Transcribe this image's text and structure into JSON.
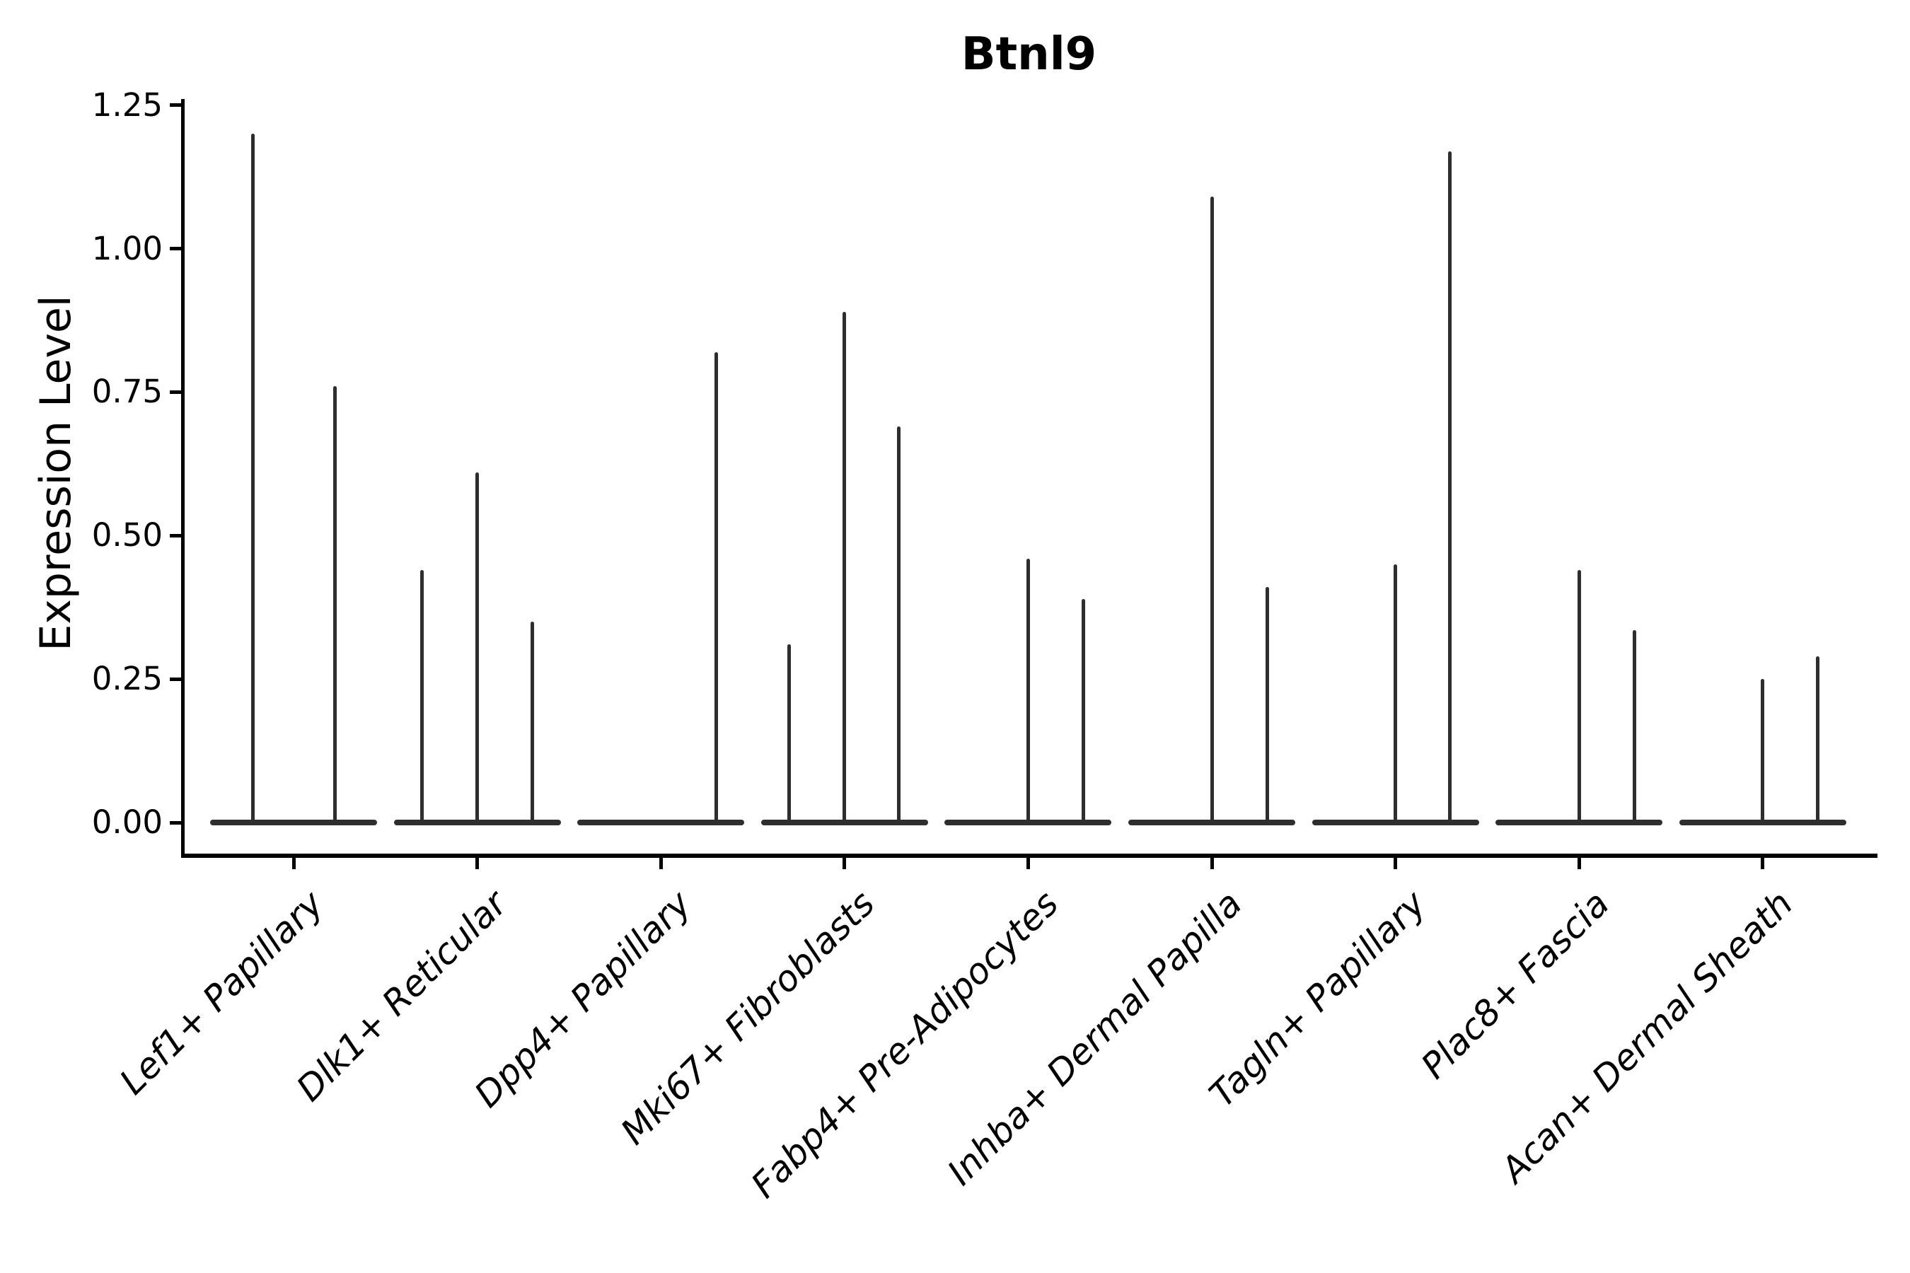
{
  "title": "Btnl9",
  "axes": {
    "ylabel": "Expression Level",
    "ytick_labels": [
      "0.00",
      "0.25",
      "0.50",
      "0.75",
      "1.00",
      "1.25"
    ]
  },
  "colors": {
    "violin_stroke": "#2e2e2e",
    "axis_ink": "#000000",
    "background": "#ffffff"
  },
  "chart_data": {
    "type": "violin",
    "title": "Btnl9",
    "xlabel": "",
    "ylabel": "Expression Level",
    "ylim": [
      -0.06,
      1.26
    ],
    "yticks": [
      0,
      0.25,
      0.5,
      0.75,
      1.0,
      1.25
    ],
    "grid": false,
    "legend_position": "none",
    "categories": [
      "Lef1+ Papillary",
      "Dlk1+ Reticular",
      "Dpp4+ Papillary",
      "Mki67+ Fibroblasts",
      "Fabp4+ Pre-Adipocytes",
      "Inhba+ Dermal Papilla",
      "Tagln+ Papillary",
      "Plac8+ Fascia",
      "Acan+ Dermal Sheath"
    ],
    "description": "Each category shows flat-based thin violins (most cells at expression 0) with narrow spikes reaching the maximum expression value; spike dodge offsets are in px relative to category center.",
    "violins": [
      {
        "category": "Lef1+ Papillary",
        "spikes": [
          {
            "offset": -58,
            "max": 1.2
          },
          {
            "offset": 58,
            "max": 0.76
          }
        ]
      },
      {
        "category": "Dlk1+ Reticular",
        "spikes": [
          {
            "offset": -78,
            "max": 0.44
          },
          {
            "offset": 0,
            "max": 0.61
          },
          {
            "offset": 78,
            "max": 0.35
          }
        ]
      },
      {
        "category": "Dpp4+ Papillary",
        "spikes": [
          {
            "offset": 78,
            "max": 0.82
          }
        ]
      },
      {
        "category": "Mki67+ Fibroblasts",
        "spikes": [
          {
            "offset": -78,
            "max": 0.31
          },
          {
            "offset": 0,
            "max": 0.89
          },
          {
            "offset": 77,
            "max": 0.69
          }
        ]
      },
      {
        "category": "Fabp4+ Pre-Adipocytes",
        "spikes": [
          {
            "offset": 0,
            "max": 0.46
          },
          {
            "offset": 78,
            "max": 0.39
          }
        ]
      },
      {
        "category": "Inhba+ Dermal Papilla",
        "spikes": [
          {
            "offset": 0,
            "max": 1.09
          },
          {
            "offset": 78,
            "max": 0.41
          }
        ]
      },
      {
        "category": "Tagln+ Papillary",
        "spikes": [
          {
            "offset": 0,
            "max": 0.45
          },
          {
            "offset": 77,
            "max": 1.17
          }
        ]
      },
      {
        "category": "Plac8+ Fascia",
        "spikes": [
          {
            "offset": 0,
            "max": 0.44
          },
          {
            "offset": 78,
            "max": 0.335
          }
        ]
      },
      {
        "category": "Acan+ Dermal Sheath",
        "spikes": [
          {
            "offset": 0,
            "max": 0.25
          },
          {
            "offset": 78,
            "max": 0.29
          }
        ]
      }
    ],
    "baseline_value": 0
  }
}
